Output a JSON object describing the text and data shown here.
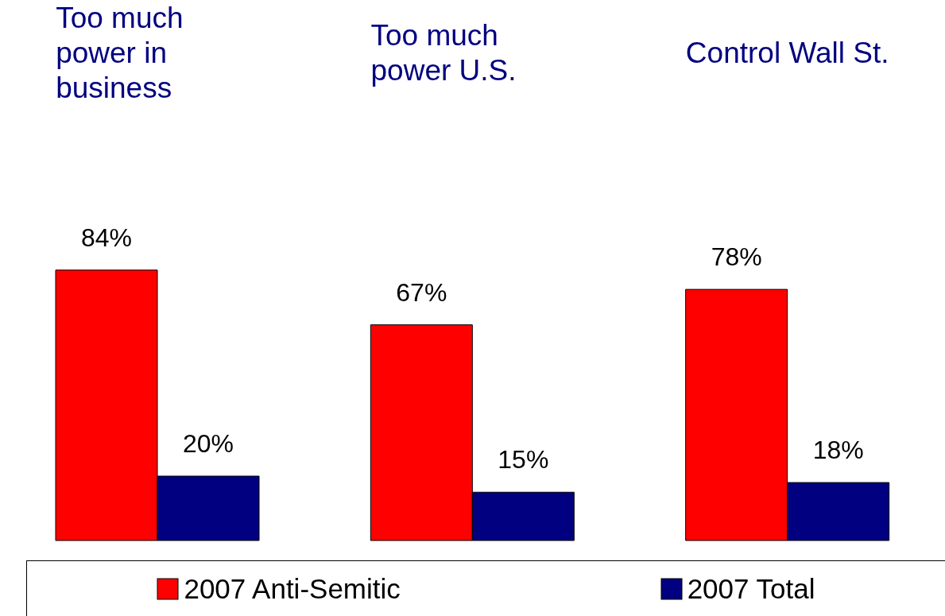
{
  "chart_data": {
    "type": "bar",
    "categories": [
      "Too much power in business",
      "Too much power U.S.",
      "Control Wall St."
    ],
    "series": [
      {
        "name": "2007 Anti-Semitic",
        "color": "#ff0000",
        "values": [
          84,
          67,
          78
        ],
        "value_labels": [
          "84%",
          "67%",
          "78%"
        ]
      },
      {
        "name": "2007 Total",
        "color": "#000080",
        "values": [
          20,
          15,
          18
        ],
        "value_labels": [
          "20%",
          "15%",
          "18%"
        ]
      }
    ],
    "legend": "bottom"
  }
}
